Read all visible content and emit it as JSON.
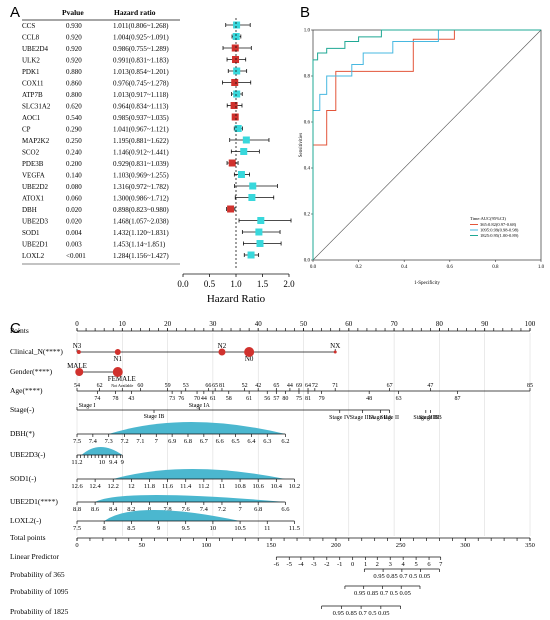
{
  "panels": {
    "forest": {
      "letter": "A",
      "col_gene": "",
      "col_pvalue": "Pvalue",
      "col_hr": "Hazard ratio",
      "xlabel": "Hazard Ratio",
      "xticks": [
        "0.0",
        "0.5",
        "1.0",
        "1.5",
        "2.0"
      ],
      "xlim": [
        0,
        2.0
      ],
      "ref_line": 1.0,
      "rows": [
        {
          "gene": "CCS",
          "p": "0.930",
          "hr_text": "1.011(0.806~1.268)",
          "hr": 1.011,
          "lo": 0.806,
          "hi": 1.268,
          "color": "#38d8dc"
        },
        {
          "gene": "CCL8",
          "p": "0.920",
          "hr_text": "1.004(0.925~1.091)",
          "hr": 1.004,
          "lo": 0.925,
          "hi": 1.091,
          "color": "#38d8dc"
        },
        {
          "gene": "UBE2D4",
          "p": "0.920",
          "hr_text": "0.986(0.755~1.289)",
          "hr": 0.986,
          "lo": 0.755,
          "hi": 1.289,
          "color": "#d0312d"
        },
        {
          "gene": "ULK2",
          "p": "0.920",
          "hr_text": "0.991(0.831~1.183)",
          "hr": 0.991,
          "lo": 0.831,
          "hi": 1.183,
          "color": "#d0312d"
        },
        {
          "gene": "PDK1",
          "p": "0.880",
          "hr_text": "1.013(0.854~1.201)",
          "hr": 1.013,
          "lo": 0.854,
          "hi": 1.201,
          "color": "#38d8dc"
        },
        {
          "gene": "COX11",
          "p": "0.860",
          "hr_text": "0.976(0.745~1.278)",
          "hr": 0.976,
          "lo": 0.745,
          "hi": 1.278,
          "color": "#d0312d"
        },
        {
          "gene": "ATP7B",
          "p": "0.800",
          "hr_text": "1.013(0.917~1.118)",
          "hr": 1.013,
          "lo": 0.917,
          "hi": 1.118,
          "color": "#38d8dc"
        },
        {
          "gene": "SLC31A2",
          "p": "0.620",
          "hr_text": "0.964(0.834~1.113)",
          "hr": 0.964,
          "lo": 0.834,
          "hi": 1.113,
          "color": "#d0312d"
        },
        {
          "gene": "AOC1",
          "p": "0.540",
          "hr_text": "0.985(0.937~1.035)",
          "hr": 0.985,
          "lo": 0.937,
          "hi": 1.035,
          "color": "#d0312d"
        },
        {
          "gene": "CP",
          "p": "0.290",
          "hr_text": "1.041(0.967~1.121)",
          "hr": 1.041,
          "lo": 0.967,
          "hi": 1.121,
          "color": "#38d8dc"
        },
        {
          "gene": "MAP2K2",
          "p": "0.250",
          "hr_text": "1.195(0.881~1.622)",
          "hr": 1.195,
          "lo": 0.881,
          "hi": 1.622,
          "color": "#38d8dc"
        },
        {
          "gene": "SCO2",
          "p": "0.240",
          "hr_text": "1.146(0.912~1.441)",
          "hr": 1.146,
          "lo": 0.912,
          "hi": 1.441,
          "color": "#38d8dc"
        },
        {
          "gene": "PDE3B",
          "p": "0.200",
          "hr_text": "0.929(0.831~1.039)",
          "hr": 0.929,
          "lo": 0.831,
          "hi": 1.039,
          "color": "#d0312d"
        },
        {
          "gene": "VEGFA",
          "p": "0.140",
          "hr_text": "1.103(0.969~1.255)",
          "hr": 1.103,
          "lo": 0.969,
          "hi": 1.255,
          "color": "#38d8dc"
        },
        {
          "gene": "UBE2D2",
          "p": "0.080",
          "hr_text": "1.316(0.972~1.782)",
          "hr": 1.316,
          "lo": 0.972,
          "hi": 1.782,
          "color": "#38d8dc"
        },
        {
          "gene": "ATOX1",
          "p": "0.060",
          "hr_text": "1.300(0.986~1.712)",
          "hr": 1.3,
          "lo": 0.986,
          "hi": 1.712,
          "color": "#38d8dc"
        },
        {
          "gene": "DBH",
          "p": "0.020",
          "hr_text": "0.898(0.823~0.980)",
          "hr": 0.898,
          "lo": 0.823,
          "hi": 0.98,
          "color": "#d0312d"
        },
        {
          "gene": "UBE2D3",
          "p": "0.020",
          "hr_text": "1.468(1.057~2.038)",
          "hr": 1.468,
          "lo": 1.057,
          "hi": 2.038,
          "color": "#38d8dc"
        },
        {
          "gene": "SOD1",
          "p": "0.004",
          "hr_text": "1.432(1.120~1.831)",
          "hr": 1.432,
          "lo": 1.12,
          "hi": 1.831,
          "color": "#38d8dc"
        },
        {
          "gene": "UBE2D1",
          "p": "0.003",
          "hr_text": "1.453(1.14~1.851)",
          "hr": 1.453,
          "lo": 1.14,
          "hi": 1.851,
          "color": "#38d8dc"
        },
        {
          "gene": "LOXL2",
          "p": "<0.001",
          "hr_text": "1.284(1.156~1.427)",
          "hr": 1.284,
          "lo": 1.156,
          "hi": 1.427,
          "color": "#38d8dc"
        }
      ]
    },
    "roc": {
      "letter": "B",
      "xlabel": "1-Specificity",
      "ylabel": "Sensitivities",
      "ticks": [
        "0.0",
        "0.2",
        "0.4",
        "0.6",
        "0.8",
        "1.0"
      ],
      "legend_title": "Time:AUC(95%CI)",
      "series": [
        {
          "label": "365:0.82(0.97-0.68)",
          "color": "#e3553a",
          "points": [
            [
              0,
              0
            ],
            [
              0,
              0.5
            ],
            [
              0.06,
              0.5
            ],
            [
              0.06,
              0.65
            ],
            [
              0.1,
              0.65
            ],
            [
              0.1,
              0.82
            ],
            [
              0.44,
              0.82
            ],
            [
              0.44,
              0.96
            ],
            [
              0.62,
              0.96
            ],
            [
              0.62,
              1
            ],
            [
              1,
              1
            ]
          ]
        },
        {
          "label": "1095:0.99(0.98-0.98)",
          "color": "#47b8e0",
          "points": [
            [
              0,
              0
            ],
            [
              0,
              0.65
            ],
            [
              0.03,
              0.65
            ],
            [
              0.03,
              0.72
            ],
            [
              0.06,
              0.72
            ],
            [
              0.06,
              0.8
            ],
            [
              0.17,
              0.8
            ],
            [
              0.17,
              0.85
            ],
            [
              0.22,
              0.85
            ],
            [
              0.22,
              0.9
            ],
            [
              0.35,
              0.9
            ],
            [
              0.35,
              0.95
            ],
            [
              0.55,
              0.95
            ],
            [
              0.55,
              1
            ],
            [
              1,
              1
            ]
          ]
        },
        {
          "label": "1825:0.95(1.00-0.89)",
          "color": "#1fa894",
          "points": [
            [
              0,
              0
            ],
            [
              0,
              0.87
            ],
            [
              0.02,
              0.87
            ],
            [
              0.02,
              0.9
            ],
            [
              0.06,
              0.9
            ],
            [
              0.06,
              0.92
            ],
            [
              0.14,
              0.92
            ],
            [
              0.14,
              0.95
            ],
            [
              0.2,
              0.95
            ],
            [
              0.2,
              0.97
            ],
            [
              0.3,
              0.97
            ],
            [
              0.3,
              1
            ],
            [
              1,
              1
            ]
          ]
        }
      ]
    },
    "nomogram": {
      "letter": "C",
      "rows": [
        {
          "label": "Points",
          "marks": [
            {
              "t": "0",
              "v": 0
            },
            {
              "t": "10",
              "v": 10
            },
            {
              "t": "20",
              "v": 20
            },
            {
              "t": "30",
              "v": 30
            },
            {
              "t": "40",
              "v": 40
            },
            {
              "t": "50",
              "v": 50
            },
            {
              "t": "60",
              "v": 60
            },
            {
              "t": "70",
              "v": 70
            },
            {
              "t": "80",
              "v": 80
            },
            {
              "t": "90",
              "v": 90
            },
            {
              "t": "100",
              "v": 100
            }
          ]
        },
        {
          "label": "Clinical_N(****)"
        },
        {
          "label": "Gender(****)"
        },
        {
          "label": "Age(****)"
        },
        {
          "label": "Stage(-)"
        },
        {
          "label": "DBH(*)"
        },
        {
          "label": "UBE2D3(-)"
        },
        {
          "label": "SOD1(-)"
        },
        {
          "label": "UBE2D1(****)"
        },
        {
          "label": "LOXL2(-)"
        },
        {
          "label": "Total points",
          "marks": [
            {
              "t": "0",
              "v": 0
            },
            {
              "t": "50",
              "v": 50
            },
            {
              "t": "100",
              "v": 100
            },
            {
              "t": "150",
              "v": 150
            },
            {
              "t": "200",
              "v": 200
            },
            {
              "t": "250",
              "v": 250
            },
            {
              "t": "300",
              "v": 300
            },
            {
              "t": "350",
              "v": 350
            }
          ]
        },
        {
          "label": "Linear Predictor"
        },
        {
          "label": "Probability of 365"
        },
        {
          "label": "Probability of 1095"
        },
        {
          "label": "Probability of 1825"
        }
      ],
      "clinical_n": [
        {
          "t": "N3",
          "v": 0
        },
        {
          "t": "N1",
          "v": 9
        },
        {
          "t": "N2",
          "v": 32
        },
        {
          "t": "N0",
          "v": 38
        },
        {
          "t": "NX",
          "v": 57
        }
      ],
      "gender": [
        {
          "t": "MALE",
          "v": 0
        },
        {
          "t": "FEMALE",
          "v": 9
        }
      ],
      "age_top": [
        {
          "t": "54",
          "v": 0
        },
        {
          "t": "62",
          "v": 5
        },
        {
          "t": "Not Available",
          "v": 10
        },
        {
          "t": "60",
          "v": 14
        },
        {
          "t": "59",
          "v": 20
        },
        {
          "t": "53",
          "v": 24
        },
        {
          "t": "66",
          "v": 29
        },
        {
          "t": "65",
          "v": 30.5
        },
        {
          "t": "81",
          "v": 32
        },
        {
          "t": "52",
          "v": 37
        },
        {
          "t": "42",
          "v": 40
        },
        {
          "t": "65",
          "v": 44
        },
        {
          "t": "44",
          "v": 47
        },
        {
          "t": "69",
          "v": 49
        },
        {
          "t": "64",
          "v": 51
        },
        {
          "t": "72",
          "v": 52.5
        },
        {
          "t": "71",
          "v": 57
        },
        {
          "t": "67",
          "v": 69
        },
        {
          "t": "47",
          "v": 78
        },
        {
          "t": "85",
          "v": 100
        }
      ],
      "age_bottom": [
        {
          "t": "74",
          "v": 4.5
        },
        {
          "t": "78",
          "v": 8.5
        },
        {
          "t": "43",
          "v": 12
        },
        {
          "t": "73",
          "v": 21
        },
        {
          "t": "76",
          "v": 23
        },
        {
          "t": "70",
          "v": 26.5
        },
        {
          "t": "44",
          "v": 28
        },
        {
          "t": "61",
          "v": 30
        },
        {
          "t": "58",
          "v": 33.5
        },
        {
          "t": "61",
          "v": 38
        },
        {
          "t": "56",
          "v": 42
        },
        {
          "t": "57",
          "v": 44
        },
        {
          "t": "80",
          "v": 46
        },
        {
          "t": "75",
          "v": 49
        },
        {
          "t": "81",
          "v": 51
        },
        {
          "t": "79",
          "v": 54
        },
        {
          "t": "48",
          "v": 64.5
        },
        {
          "t": "63",
          "v": 71
        },
        {
          "t": "87",
          "v": 84
        }
      ],
      "stage_labels": [
        {
          "t": "Stage I",
          "v": 0
        },
        {
          "t": "Stage IA",
          "v": 27
        },
        {
          "t": "Stage IB",
          "v": 17
        },
        {
          "t": "Stage IIA",
          "v": 67
        },
        {
          "t": "Stage IIIB",
          "v": 77
        },
        {
          "t": "Stage IIB",
          "v": 78
        },
        {
          "t": "Stage IV",
          "v": 58
        },
        {
          "t": "Stage IIIA",
          "v": 63
        },
        {
          "t": "Stage II",
          "v": 69
        }
      ],
      "dbh": [
        {
          "t": "7.5",
          "v": 0
        },
        {
          "t": "7.4",
          "v": 3.5
        },
        {
          "t": "7.3",
          "v": 7
        },
        {
          "t": "7.2",
          "v": 10.5
        },
        {
          "t": "7.1",
          "v": 14
        },
        {
          "t": "7",
          "v": 17.5
        },
        {
          "t": "6.9",
          "v": 21
        },
        {
          "t": "6.8",
          "v": 24.5
        },
        {
          "t": "6.7",
          "v": 28
        },
        {
          "t": "6.6",
          "v": 31.5
        },
        {
          "t": "6.5",
          "v": 35
        },
        {
          "t": "6.4",
          "v": 38.5
        },
        {
          "t": "6.3",
          "v": 42
        },
        {
          "t": "6.2",
          "v": 46
        }
      ],
      "ube2d3": [
        {
          "t": "11.2",
          "v": 0
        },
        {
          "t": "10",
          "v": 5.5
        },
        {
          "t": "9.4",
          "v": 8
        },
        {
          "t": "9",
          "v": 10
        }
      ],
      "sod1": [
        {
          "t": "12.6",
          "v": 0
        },
        {
          "t": "12.4",
          "v": 4
        },
        {
          "t": "12.2",
          "v": 8
        },
        {
          "t": "12",
          "v": 12
        },
        {
          "t": "11.8",
          "v": 16
        },
        {
          "t": "11.6",
          "v": 20
        },
        {
          "t": "11.4",
          "v": 24
        },
        {
          "t": "11.2",
          "v": 28
        },
        {
          "t": "11",
          "v": 32
        },
        {
          "t": "10.8",
          "v": 36
        },
        {
          "t": "10.6",
          "v": 40
        },
        {
          "t": "10.4",
          "v": 44
        },
        {
          "t": "10.2",
          "v": 48
        }
      ],
      "ube2d1": [
        {
          "t": "8.8",
          "v": 0
        },
        {
          "t": "8.6",
          "v": 4
        },
        {
          "t": "8.4",
          "v": 8
        },
        {
          "t": "8.2",
          "v": 12
        },
        {
          "t": "8",
          "v": 16
        },
        {
          "t": "7.8",
          "v": 20
        },
        {
          "t": "7.6",
          "v": 24
        },
        {
          "t": "7.4",
          "v": 28
        },
        {
          "t": "7.2",
          "v": 32
        },
        {
          "t": "7",
          "v": 36
        },
        {
          "t": "6.8",
          "v": 40
        },
        {
          "t": "6.6",
          "v": 46
        }
      ],
      "loxl2": [
        {
          "t": "7.5",
          "v": 0
        },
        {
          "t": "8",
          "v": 6
        },
        {
          "t": "8.5",
          "v": 12
        },
        {
          "t": "9",
          "v": 18
        },
        {
          "t": "9.5",
          "v": 24
        },
        {
          "t": "10",
          "v": 30
        },
        {
          "t": "10.5",
          "v": 36
        },
        {
          "t": "11",
          "v": 42
        },
        {
          "t": "11.5",
          "v": 48
        }
      ],
      "linear_predictor": [
        {
          "t": "-6",
          "v": 154
        },
        {
          "t": "-5",
          "v": 164
        },
        {
          "t": "-4",
          "v": 173
        },
        {
          "t": "-3",
          "v": 183
        },
        {
          "t": "-2",
          "v": 193
        },
        {
          "t": "-1",
          "v": 203
        },
        {
          "t": "0",
          "v": 213
        },
        {
          "t": "1",
          "v": 223
        },
        {
          "t": "2",
          "v": 232
        },
        {
          "t": "3",
          "v": 242
        },
        {
          "t": "4",
          "v": 252
        },
        {
          "t": "5",
          "v": 262
        },
        {
          "t": "6",
          "v": 272
        },
        {
          "t": "7",
          "v": 281
        }
      ],
      "p365": "0.95  0.85 0.7 0.5  0.05",
      "p1095": "0.95  0.85 0.7 0.5  0.05",
      "p1825": "0.95  0.85 0.7 0.5  0.05"
    }
  },
  "chart_data": [
    {
      "type": "scatter",
      "title": "",
      "xlabel": "Hazard Ratio",
      "ylabel": "",
      "xlim": [
        0,
        2.0
      ],
      "categories": [
        "CCS",
        "CCL8",
        "UBE2D4",
        "ULK2",
        "PDK1",
        "COX11",
        "ATP7B",
        "SLC31A2",
        "AOC1",
        "CP",
        "MAP2K2",
        "SCO2",
        "PDE3B",
        "VEGFA",
        "UBE2D2",
        "ATOX1",
        "DBH",
        "UBE2D3",
        "SOD1",
        "UBE2D1",
        "LOXL2"
      ],
      "values": [
        1.011,
        1.004,
        0.986,
        0.991,
        1.013,
        0.976,
        1.013,
        0.964,
        0.985,
        1.041,
        1.195,
        1.146,
        0.929,
        1.103,
        1.316,
        1.3,
        0.898,
        1.468,
        1.432,
        1.453,
        1.284
      ]
    },
    {
      "type": "line",
      "title": "",
      "xlabel": "1-Specificity",
      "ylabel": "Sensitivities",
      "xlim": [
        0,
        1
      ],
      "ylim": [
        0,
        1
      ],
      "series": [
        {
          "name": "365:0.82(0.97-0.68)"
        },
        {
          "name": "1095:0.99(0.98-0.98)"
        },
        {
          "name": "1825:0.95(1.00-0.89)"
        }
      ]
    },
    {
      "type": "table",
      "title": "",
      "xlabel": "",
      "ylabel": ""
    }
  ]
}
